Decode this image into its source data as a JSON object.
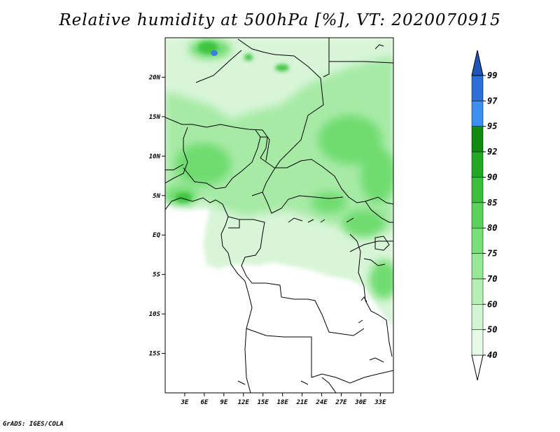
{
  "title": "Relative humidity at 500hPa [%], VT: 2020070915",
  "credit": "GrADS: IGES/COLA",
  "map": {
    "lon_ticks": [
      "3E",
      "6E",
      "9E",
      "12E",
      "15E",
      "18E",
      "21E",
      "24E",
      "27E",
      "30E",
      "33E"
    ],
    "lat_ticks": [
      "20N",
      "15N",
      "10N",
      "5N",
      "EQ",
      "5S",
      "10S",
      "15S"
    ],
    "lon_range": [
      0,
      35
    ],
    "lat_range": [
      -20,
      25
    ]
  },
  "colorbar": {
    "labels": [
      "40",
      "50",
      "60",
      "70",
      "75",
      "80",
      "85",
      "90",
      "92",
      "95",
      "97",
      "99"
    ],
    "colors": [
      "#ffffff",
      "#e6fae6",
      "#d0f5d0",
      "#b4efb4",
      "#96e896",
      "#78e078",
      "#5ad35a",
      "#3cc03c",
      "#22a822",
      "#108a10",
      "#3a8ff0",
      "#2a6ed8",
      "#1f55b8"
    ]
  },
  "field_colors": {
    "light": "#d8f5d8",
    "mid": "#a6eaa6",
    "strong": "#6fdc6f",
    "deep": "#3fc43f",
    "blue": "#3b7fe0"
  }
}
